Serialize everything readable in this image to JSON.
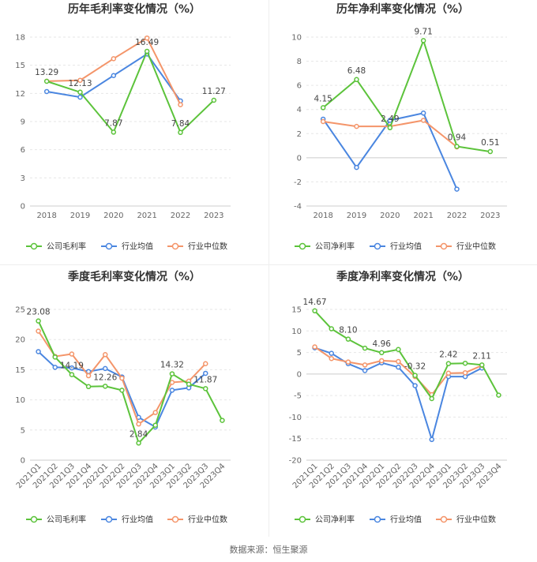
{
  "colors": {
    "company": "#5cc33b",
    "industry_avg": "#4a86e0",
    "industry_median": "#f4956a"
  },
  "source": "数据来源：恒生聚源",
  "chart_data": [
    {
      "type": "line",
      "title": "历年毛利率变化情况（%）",
      "categories": [
        "2018",
        "2019",
        "2020",
        "2021",
        "2022",
        "2023"
      ],
      "ylim": [
        0,
        18
      ],
      "yticks": [
        0,
        3,
        6,
        9,
        12,
        15,
        18
      ],
      "grid": true,
      "legend_position": "bottom-center",
      "series": [
        {
          "name": "公司毛利率",
          "color": "company",
          "values": [
            13.29,
            12.13,
            7.87,
            16.49,
            7.84,
            11.27
          ],
          "labels": [
            "13.29",
            "12.13",
            "7.87",
            "16.49",
            "7.84",
            "11.27"
          ]
        },
        {
          "name": "行业均值",
          "color": "industry_avg",
          "values": [
            12.2,
            11.6,
            13.9,
            16.2,
            11.2,
            null
          ]
        },
        {
          "name": "行业中位数",
          "color": "industry_median",
          "values": [
            13.3,
            13.4,
            15.7,
            17.9,
            10.8,
            null
          ]
        }
      ]
    },
    {
      "type": "line",
      "title": "历年净利率变化情况（%）",
      "categories": [
        "2018",
        "2019",
        "2020",
        "2021",
        "2022",
        "2023"
      ],
      "ylim": [
        -4,
        10
      ],
      "yticks": [
        -4,
        -2,
        0,
        2,
        4,
        6,
        8,
        10
      ],
      "grid": true,
      "legend_position": "bottom-center",
      "series": [
        {
          "name": "公司净利率",
          "color": "company",
          "values": [
            4.15,
            6.48,
            2.49,
            9.71,
            0.94,
            0.51
          ],
          "labels": [
            "4.15",
            "6.48",
            "2.49",
            "9.71",
            "0.94",
            "0.51"
          ]
        },
        {
          "name": "行业均值",
          "color": "industry_avg",
          "values": [
            3.2,
            -0.8,
            3.1,
            3.7,
            -2.6,
            null
          ]
        },
        {
          "name": "行业中位数",
          "color": "industry_median",
          "values": [
            3.0,
            2.6,
            2.6,
            3.1,
            0.9,
            null
          ]
        }
      ]
    },
    {
      "type": "line",
      "title": "季度毛利率变化情况（%）",
      "categories": [
        "2021Q1",
        "2021Q2",
        "2021Q3",
        "2021Q4",
        "2022Q1",
        "2022Q2",
        "2022Q3",
        "2022Q4",
        "2023Q1",
        "2023Q2",
        "2023Q3",
        "2023Q4"
      ],
      "ylim": [
        0,
        25
      ],
      "yticks": [
        0,
        5,
        10,
        15,
        20,
        25
      ],
      "grid": true,
      "legend_position": "bottom-center",
      "series": [
        {
          "name": "公司毛利率",
          "color": "company",
          "values": [
            23.08,
            17.1,
            14.19,
            12.2,
            12.26,
            11.6,
            2.84,
            5.8,
            14.32,
            12.6,
            11.87,
            6.6
          ],
          "labels": [
            "23.08",
            "",
            "14.19",
            "",
            "12.26",
            "",
            "2.84",
            "",
            "14.32",
            "",
            "11.87",
            ""
          ]
        },
        {
          "name": "行业均值",
          "color": "industry_avg",
          "values": [
            18.0,
            15.4,
            15.3,
            14.7,
            15.2,
            13.8,
            7.1,
            5.5,
            11.6,
            12.0,
            14.4,
            null
          ]
        },
        {
          "name": "行业中位数",
          "color": "industry_median",
          "values": [
            21.4,
            17.2,
            17.6,
            14.0,
            17.5,
            13.6,
            6.0,
            7.9,
            12.9,
            13.1,
            16.0,
            null
          ]
        }
      ]
    },
    {
      "type": "line",
      "title": "季度净利率变化情况（%）",
      "categories": [
        "2021Q1",
        "2021Q2",
        "2021Q3",
        "2021Q4",
        "2022Q1",
        "2022Q2",
        "2022Q3",
        "2022Q4",
        "2023Q1",
        "2023Q2",
        "2023Q3",
        "2023Q4"
      ],
      "ylim": [
        -20,
        15
      ],
      "yticks": [
        -20,
        -15,
        -10,
        -5,
        0,
        5,
        10,
        15
      ],
      "grid": true,
      "legend_position": "bottom-center",
      "series": [
        {
          "name": "公司净利率",
          "color": "company",
          "values": [
            14.67,
            10.5,
            8.1,
            6.0,
            4.96,
            5.7,
            -0.32,
            -5.7,
            2.42,
            2.5,
            2.11,
            -4.9
          ],
          "labels": [
            "14.67",
            "",
            "8.10",
            "",
            "4.96",
            "",
            "-0.32",
            "",
            "2.42",
            "",
            "2.11",
            ""
          ]
        },
        {
          "name": "行业均值",
          "color": "industry_avg",
          "values": [
            6.1,
            4.8,
            2.4,
            0.8,
            2.6,
            1.6,
            -2.7,
            -15.2,
            -0.6,
            -0.6,
            1.4,
            null
          ]
        },
        {
          "name": "行业中位数",
          "color": "industry_median",
          "values": [
            6.3,
            3.6,
            2.8,
            2.1,
            3.1,
            2.9,
            -0.6,
            -4.8,
            0.2,
            0.3,
            2.0,
            null
          ]
        }
      ]
    }
  ]
}
